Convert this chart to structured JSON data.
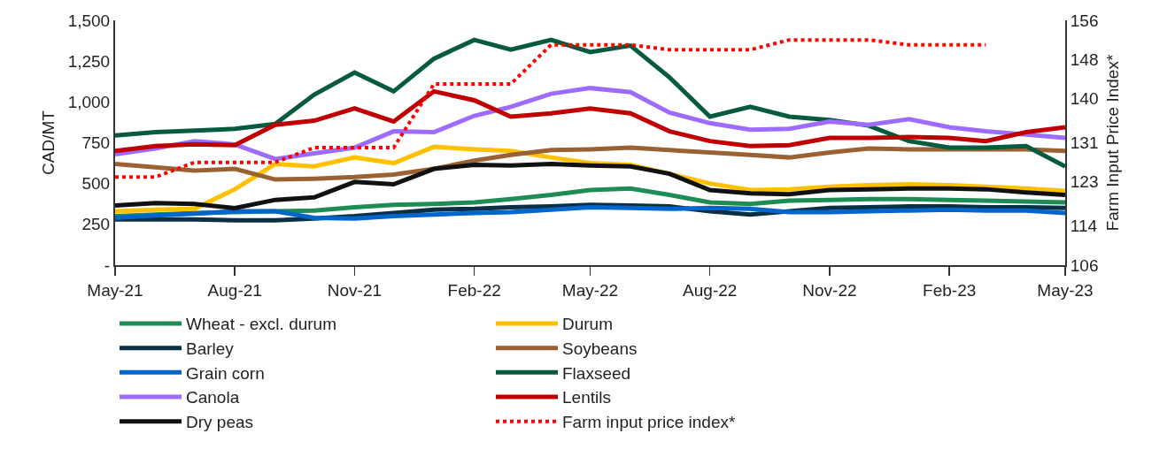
{
  "chart_data": {
    "type": "line",
    "ylabel": "CAD/MT",
    "y2label": "Farm Input Price Index*",
    "x": [
      "2021-05",
      "2021-06",
      "2021-07",
      "2021-08",
      "2021-09",
      "2021-10",
      "2021-11",
      "2021-12",
      "2022-01",
      "2022-02",
      "2022-03",
      "2022-04",
      "2022-05",
      "2022-06",
      "2022-07",
      "2022-08",
      "2022-09",
      "2022-10",
      "2022-11",
      "2022-12",
      "2023-01",
      "2023-02",
      "2023-03",
      "2023-04",
      "2023-05"
    ],
    "xlim": [
      "2021-05",
      "2023-05"
    ],
    "xticks": [
      {
        "value": "2021-05",
        "label": "May-21"
      },
      {
        "value": "2021-08",
        "label": "Aug-21"
      },
      {
        "value": "2021-11",
        "label": "Nov-21"
      },
      {
        "value": "2022-02",
        "label": "Feb-22"
      },
      {
        "value": "2022-05",
        "label": "May-22"
      },
      {
        "value": "2022-08",
        "label": "Aug-22"
      },
      {
        "value": "2022-11",
        "label": "Nov-22"
      },
      {
        "value": "2023-02",
        "label": "Feb-23"
      },
      {
        "value": "2023-05",
        "label": "May-23"
      }
    ],
    "ylim": [
      0,
      1500
    ],
    "yticks": [
      {
        "value": 0,
        "label": "-"
      },
      250,
      500,
      750,
      {
        "value": 1000,
        "label": "1,000"
      },
      {
        "value": 1250,
        "label": "1,250"
      },
      {
        "value": 1500,
        "label": "1,500"
      }
    ],
    "y2lim": [
      106,
      156
    ],
    "y2ticks": [
      106,
      114,
      123,
      131,
      140,
      148,
      156
    ],
    "grid": false,
    "legend": "bottom",
    "line_style": "solid",
    "marker": "none",
    "series": [
      {
        "name": "Wheat - excl. durum",
        "color": "#1e8c55",
        "values": [
          300,
          310,
          320,
          325,
          330,
          335,
          355,
          370,
          375,
          385,
          405,
          430,
          460,
          470,
          430,
          385,
          375,
          395,
          400,
          405,
          405,
          400,
          395,
          390,
          385
        ]
      },
      {
        "name": "Durum",
        "color": "#ffc000",
        "values": [
          330,
          340,
          345,
          465,
          620,
          605,
          660,
          625,
          725,
          710,
          700,
          660,
          625,
          615,
          560,
          500,
          460,
          465,
          480,
          490,
          495,
          490,
          480,
          470,
          455
        ]
      },
      {
        "name": "Barley",
        "color": "#0b2f45",
        "values": [
          280,
          280,
          280,
          275,
          275,
          285,
          300,
          320,
          340,
          345,
          355,
          360,
          370,
          365,
          360,
          330,
          310,
          330,
          350,
          355,
          360,
          360,
          355,
          355,
          350
        ]
      },
      {
        "name": "Soybeans",
        "color": "#9a6232",
        "values": [
          620,
          600,
          580,
          590,
          525,
          530,
          540,
          555,
          590,
          640,
          675,
          705,
          710,
          720,
          705,
          690,
          675,
          660,
          690,
          715,
          710,
          710,
          710,
          710,
          700
        ]
      },
      {
        "name": "Grain corn",
        "color": "#0066cc",
        "values": [
          290,
          305,
          315,
          330,
          330,
          290,
          285,
          300,
          310,
          320,
          325,
          340,
          355,
          350,
          345,
          350,
          345,
          325,
          325,
          330,
          335,
          340,
          335,
          335,
          320
        ]
      },
      {
        "name": "Flaxseed",
        "color": "#055a40",
        "values": [
          795,
          815,
          825,
          835,
          865,
          1045,
          1180,
          1065,
          1265,
          1380,
          1320,
          1380,
          1305,
          1345,
          1150,
          910,
          970,
          910,
          890,
          855,
          760,
          720,
          720,
          730,
          605
        ]
      },
      {
        "name": "Canola",
        "color": "#9e6bff",
        "values": [
          680,
          715,
          760,
          740,
          650,
          685,
          720,
          820,
          815,
          915,
          970,
          1050,
          1085,
          1060,
          935,
          870,
          830,
          835,
          880,
          860,
          895,
          845,
          820,
          800,
          780
        ]
      },
      {
        "name": "Lentils",
        "color": "#c00000",
        "values": [
          700,
          730,
          740,
          735,
          860,
          885,
          960,
          880,
          1065,
          1010,
          910,
          930,
          960,
          930,
          820,
          760,
          730,
          735,
          780,
          780,
          785,
          780,
          760,
          815,
          845
        ]
      },
      {
        "name": "Dry peas",
        "color": "#111111",
        "values": [
          365,
          380,
          375,
          350,
          400,
          415,
          510,
          495,
          590,
          615,
          610,
          620,
          610,
          605,
          560,
          460,
          440,
          435,
          460,
          465,
          470,
          470,
          465,
          445,
          430
        ]
      },
      {
        "name": "Farm input price index*",
        "color": "#ff0000",
        "axis": "y2",
        "line_style": "dotted",
        "values": [
          124,
          124,
          127,
          127,
          127,
          130,
          130,
          130,
          143,
          143,
          143,
          151,
          151,
          151,
          150,
          150,
          150,
          152,
          152,
          152,
          151,
          151,
          151,
          null,
          null
        ]
      }
    ]
  }
}
